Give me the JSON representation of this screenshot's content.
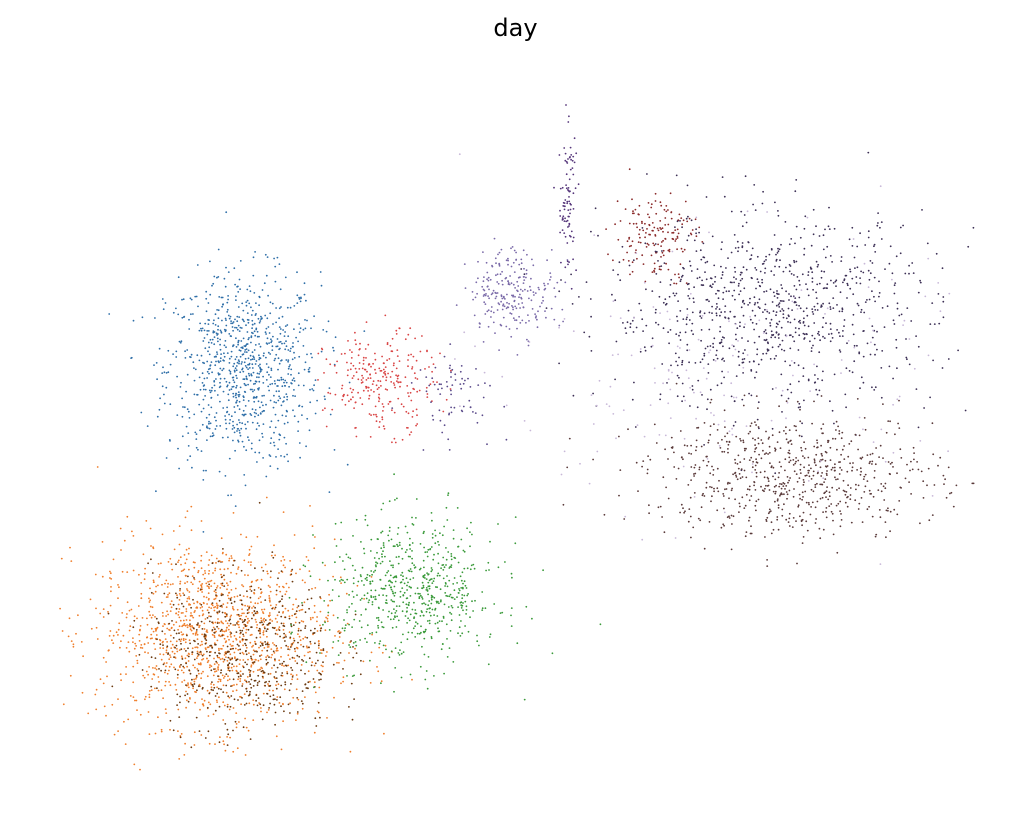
{
  "chart_data": {
    "type": "scatter",
    "title": "day",
    "xlabel": "",
    "ylabel": "",
    "axes_visible": false,
    "grid": false,
    "legend": "none",
    "xlim": [
      0,
      100
    ],
    "ylim": [
      0,
      100
    ],
    "series": [
      {
        "color": "#2f6fa8",
        "n": 900,
        "cx": 20.0,
        "cy": 58.5,
        "sx": 4.2,
        "sy": 7.0
      },
      {
        "color": "#f07f2c",
        "n": 1300,
        "cx": 17.0,
        "cy": 20.0,
        "sx": 6.5,
        "sy": 6.8
      },
      {
        "color": "#6b3a10",
        "n": 550,
        "cx": 20.0,
        "cy": 17.5,
        "sx": 5.0,
        "sy": 6.0
      },
      {
        "color": "#3a9a3a",
        "n": 650,
        "cx": 38.5,
        "cy": 26.0,
        "sx": 4.8,
        "sy": 5.2
      },
      {
        "color": "#d94545",
        "n": 260,
        "cx": 35.0,
        "cy": 56.5,
        "sx": 3.0,
        "sy": 3.6
      },
      {
        "color": "#7a6aa8",
        "n": 230,
        "cx": 49.5,
        "cy": 70.0,
        "sx": 2.4,
        "sy": 3.2
      },
      {
        "color": "#8a2a2a",
        "n": 160,
        "cx": 65.0,
        "cy": 78.0,
        "sx": 2.2,
        "sy": 3.2
      },
      {
        "color": "#3c2f55",
        "n": 900,
        "cx": 77.5,
        "cy": 67.0,
        "sx": 9.0,
        "sy": 7.0
      },
      {
        "color": "#5a3a3a",
        "n": 700,
        "cx": 80.0,
        "cy": 43.0,
        "sx": 8.0,
        "sy": 4.5
      },
      {
        "color": "#c8b8d8",
        "n": 180,
        "cx": 72.0,
        "cy": 58.0,
        "sx": 12.0,
        "sy": 10.0
      },
      {
        "color": "#55357a",
        "n": 90,
        "cx": 55.5,
        "cy": 83.0,
        "sx": 0.5,
        "sy": 5.5
      },
      {
        "color": "#5a4a8a",
        "n": 70,
        "cx": 43.0,
        "cy": 55.0,
        "sx": 2.5,
        "sy": 3.0
      }
    ]
  }
}
